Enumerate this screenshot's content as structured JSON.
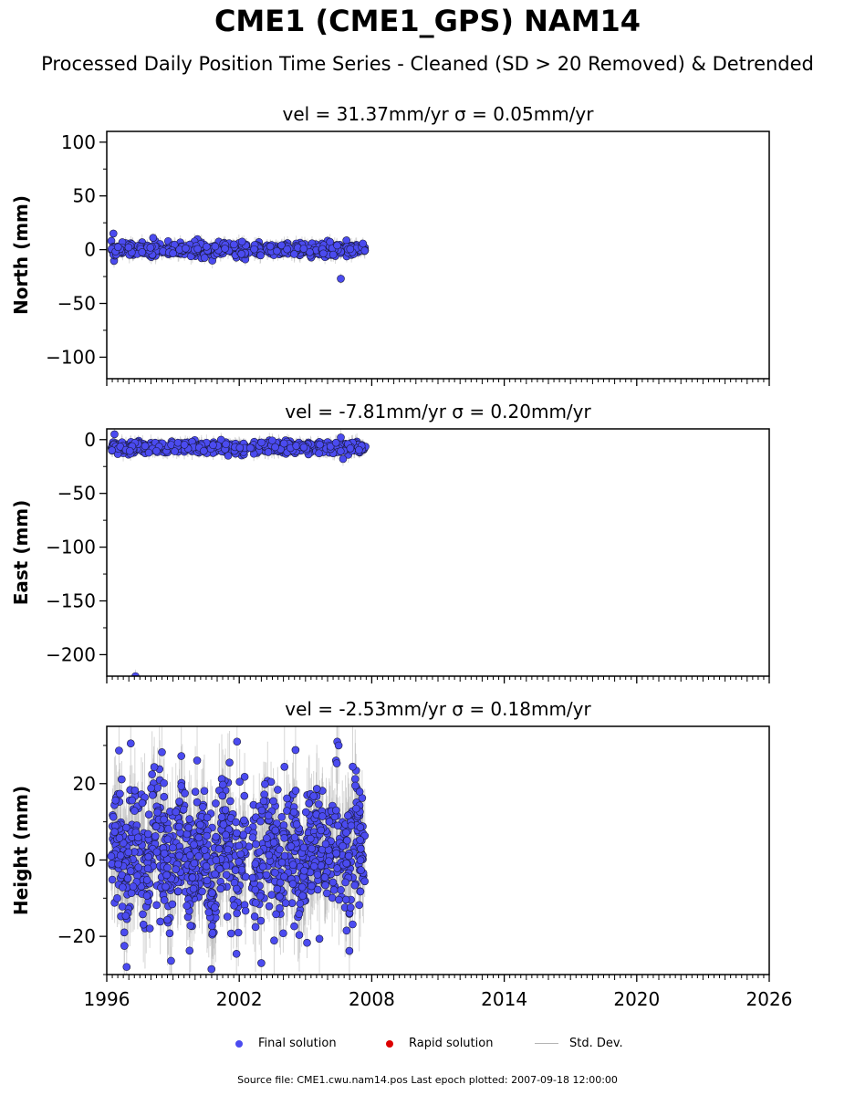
{
  "header": {
    "title": "CME1 (CME1_GPS) NAM14",
    "subtitle": "Processed Daily Position Time Series - Cleaned (SD > 20 Removed) & Detrended"
  },
  "colors": {
    "final": "#4b4bf0",
    "final_edge": "#1a1a3a",
    "rapid": "#dd0000",
    "stddev": "#b4b4b4"
  },
  "chart_data": [
    {
      "type": "scatter",
      "title": "vel = 31.37mm/yr   σ = 0.05mm/yr",
      "ylabel": "North (mm)",
      "xlim": [
        1996,
        2026
      ],
      "ylim": [
        -120,
        110
      ],
      "yticks": [
        100,
        50,
        0,
        -50,
        -100
      ],
      "ytick_labels": [
        "100",
        "50",
        "0",
        "−50",
        "−100"
      ],
      "data_range": [
        1996.2,
        2007.72
      ],
      "center": 0,
      "scatter_sd": 3.0,
      "error_sd": 6,
      "outliers": [
        [
          1996.3,
          15
        ],
        [
          2006.6,
          -27
        ],
        [
          1998.1,
          11
        ]
      ]
    },
    {
      "type": "scatter",
      "title": "vel = -7.81mm/yr   σ = 0.20mm/yr",
      "ylabel": "East (mm)",
      "xlim": [
        1996,
        2026
      ],
      "ylim": [
        -220,
        10
      ],
      "yticks": [
        0,
        -50,
        -100,
        -150,
        -200
      ],
      "ytick_labels": [
        "0",
        "−50",
        "−100",
        "−150",
        "−200"
      ],
      "data_range": [
        1996.2,
        2007.72
      ],
      "center": -7,
      "scatter_sd": 2.8,
      "error_sd": 6,
      "outliers": [
        [
          1996.35,
          5
        ],
        [
          1997.3,
          -220
        ],
        [
          2006.7,
          -18
        ],
        [
          2006.6,
          2
        ]
      ]
    },
    {
      "type": "scatter",
      "title": "vel = -2.53mm/yr   σ = 0.18mm/yr",
      "ylabel": "Height (mm)",
      "xlim": [
        1996,
        2026
      ],
      "ylim": [
        -30,
        35
      ],
      "yticks": [
        20,
        0,
        -20
      ],
      "ytick_labels": [
        "20",
        "0",
        "−20"
      ],
      "xticks": [
        1996,
        2002,
        2008,
        2014,
        2020,
        2026
      ],
      "xtick_labels": [
        "1996",
        "2002",
        "2008",
        "2014",
        "2020",
        "2026"
      ],
      "data_range": [
        1996.2,
        2007.72
      ],
      "center": 2,
      "scatter_sd": 8.5,
      "error_sd": 9,
      "outliers": [
        [
          2001.9,
          31
        ],
        [
          2003.0,
          -27
        ],
        [
          1996.9,
          -28
        ],
        [
          2006.5,
          30
        ]
      ]
    }
  ],
  "legend": {
    "final_label": "Final solution",
    "rapid_label": "Rapid solution",
    "stddev_label": "Std. Dev."
  },
  "footer": {
    "source": "Source file: CME1.cwu.nam14.pos  Last epoch plotted: 2007-09-18 12:00:00"
  }
}
